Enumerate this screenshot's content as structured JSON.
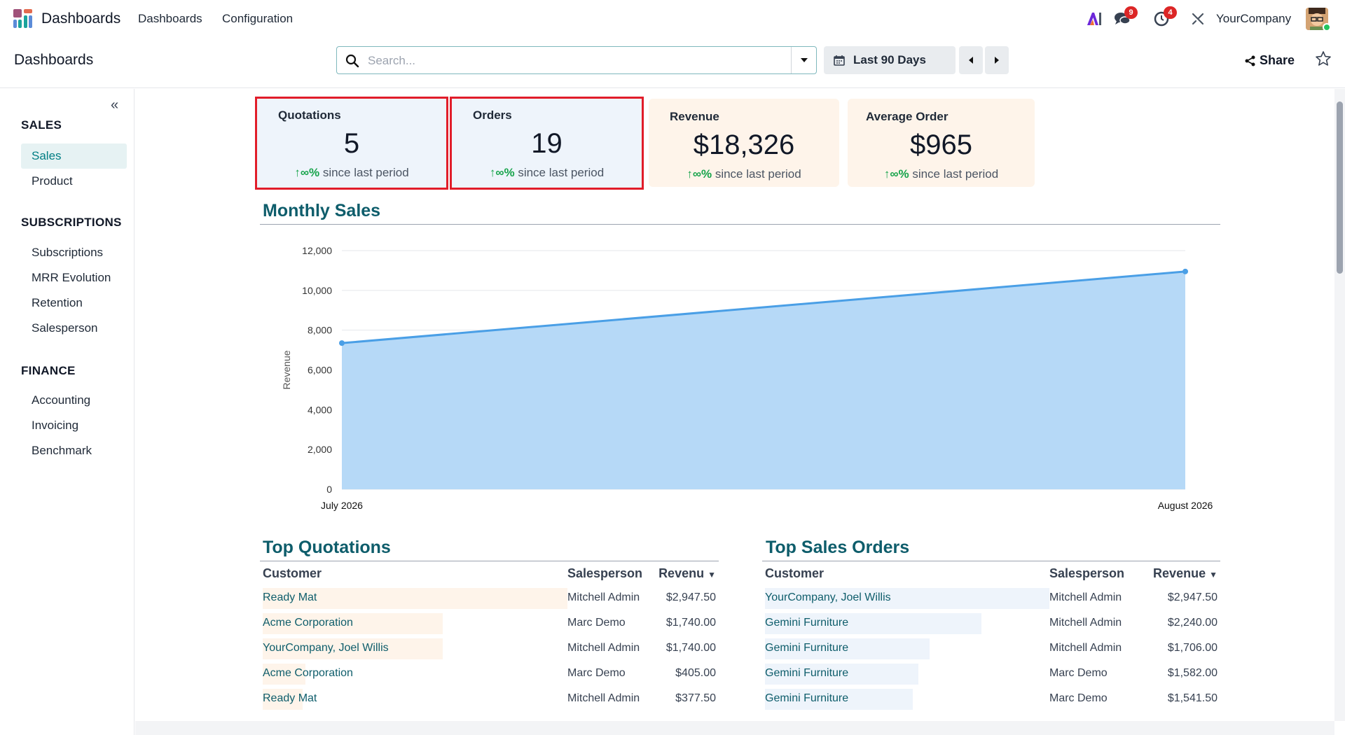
{
  "app": {
    "name": "Dashboards"
  },
  "menu": {
    "dashboards": "Dashboards",
    "configuration": "Configuration"
  },
  "nav": {
    "messages_count": "9",
    "activities_count": "4",
    "company": "YourCompany",
    "ai_label": "AI"
  },
  "control": {
    "breadcrumb": "Dashboards",
    "search_placeholder": "Search...",
    "date_filter": "Last 90 Days",
    "share_label": "Share"
  },
  "sidebar": {
    "sections": [
      {
        "title": "SALES",
        "items": [
          "Sales",
          "Product"
        ]
      },
      {
        "title": "SUBSCRIPTIONS",
        "items": [
          "Subscriptions",
          "MRR Evolution",
          "Retention",
          "Salesperson"
        ]
      },
      {
        "title": "FINANCE",
        "items": [
          "Accounting",
          "Invoicing",
          "Benchmark"
        ]
      }
    ],
    "active_item": "Sales"
  },
  "kpis": [
    {
      "title": "Quotations",
      "value": "5",
      "trend": "∞%",
      "trend_text": "since last period"
    },
    {
      "title": "Orders",
      "value": "19",
      "trend": "∞%",
      "trend_text": "since last period"
    },
    {
      "title": "Revenue",
      "value": "$18,326",
      "trend": "∞%",
      "trend_text": "since last period"
    },
    {
      "title": "Average Order",
      "value": "$965",
      "trend": "∞%",
      "trend_text": "since last period"
    }
  ],
  "monthly_sales": {
    "heading": "Monthly Sales"
  },
  "chart_data": {
    "type": "area",
    "x": [
      "July 2026",
      "August 2026"
    ],
    "series": [
      {
        "values": [
          7350,
          10950
        ]
      }
    ],
    "ylabel": "Revenue",
    "xlabel": "",
    "ylim": [
      0,
      12000
    ],
    "yticks": [
      "0",
      "2,000",
      "4,000",
      "6,000",
      "8,000",
      "10,000",
      "12,000"
    ],
    "grid": true,
    "colors": {
      "fill": "#b6d9f7",
      "line": "#4a9fe6"
    }
  },
  "top_quotations": {
    "heading": "Top Quotations",
    "columns": [
      "Customer",
      "Salesperson",
      "Revenu"
    ],
    "rows": [
      {
        "customer": "Ready Mat",
        "salesperson": "Mitchell Admin",
        "revenue": "$2,947.50",
        "share": 1.0
      },
      {
        "customer": "Acme Corporation",
        "salesperson": "Marc Demo",
        "revenue": "$1,740.00",
        "share": 0.59
      },
      {
        "customer": "YourCompany, Joel Willis",
        "salesperson": "Mitchell Admin",
        "revenue": "$1,740.00",
        "share": 0.59
      },
      {
        "customer": "Acme Corporation",
        "salesperson": "Marc Demo",
        "revenue": "$405.00",
        "share": 0.14
      },
      {
        "customer": "Ready Mat",
        "salesperson": "Mitchell Admin",
        "revenue": "$377.50",
        "share": 0.13
      }
    ]
  },
  "top_sales_orders": {
    "heading": "Top Sales Orders",
    "columns": [
      "Customer",
      "Salesperson",
      "Revenue"
    ],
    "rows": [
      {
        "customer": "YourCompany, Joel Willis",
        "salesperson": "Mitchell Admin",
        "revenue": "$2,947.50",
        "share": 1.0
      },
      {
        "customer": "Gemini Furniture",
        "salesperson": "Mitchell Admin",
        "revenue": "$2,240.00",
        "share": 0.76
      },
      {
        "customer": "Gemini Furniture",
        "salesperson": "Mitchell Admin",
        "revenue": "$1,706.00",
        "share": 0.58
      },
      {
        "customer": "Gemini Furniture",
        "salesperson": "Marc Demo",
        "revenue": "$1,582.00",
        "share": 0.54
      },
      {
        "customer": "Gemini Furniture",
        "salesperson": "Marc Demo",
        "revenue": "$1,541.50",
        "share": 0.52
      }
    ]
  }
}
